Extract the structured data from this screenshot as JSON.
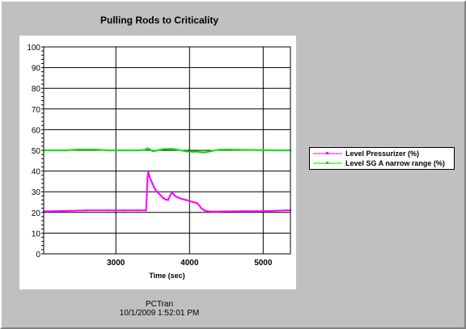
{
  "chart_data": {
    "type": "line",
    "title": "Pulling Rods to Criticality",
    "xlabel": "Time (sec)",
    "ylabel": "",
    "xlim": [
      2020,
      5370
    ],
    "ylim": [
      0,
      100
    ],
    "x_ticks": [
      3000,
      4000,
      5000
    ],
    "y_ticks": [
      0,
      10,
      20,
      30,
      40,
      50,
      60,
      70,
      80,
      90,
      100
    ],
    "grid": true,
    "legend_position": "right",
    "series": [
      {
        "name": "Level Pressurizer (%)",
        "color": "#ff00ff",
        "x": [
          2020,
          2300,
          2600,
          2900,
          3100,
          3300,
          3410,
          3420,
          3430,
          3440,
          3460,
          3490,
          3520,
          3560,
          3600,
          3640,
          3680,
          3710,
          3740,
          3760,
          3780,
          3800,
          3830,
          3860,
          3900,
          3950,
          4000,
          4050,
          4100,
          4130,
          4160,
          4200,
          4250,
          4300,
          4400,
          4500,
          4700,
          4900,
          5100,
          5300,
          5370
        ],
        "y": [
          20.5,
          20.7,
          21,
          21,
          21,
          21,
          21,
          29,
          37,
          39.5,
          37,
          34.5,
          32,
          30,
          28.5,
          27,
          26.2,
          26,
          28.5,
          29.5,
          29,
          28,
          27.5,
          27,
          26.5,
          26,
          25.5,
          25,
          24.5,
          23.5,
          22,
          21,
          20.5,
          20.4,
          20.4,
          20.5,
          20.6,
          20.6,
          20.7,
          21,
          21
        ]
      },
      {
        "name": "Level SG A narrow range (%)",
        "color": "#00e000",
        "x": [
          2020,
          2300,
          2500,
          2700,
          2900,
          3100,
          3300,
          3400,
          3430,
          3470,
          3500,
          3550,
          3600,
          3650,
          3700,
          3750,
          3800,
          3850,
          3900,
          3950,
          4000,
          4050,
          4100,
          4150,
          4200,
          4250,
          4300,
          4400,
          4500,
          4600,
          4800,
          5000,
          5200,
          5370
        ],
        "y": [
          50,
          50,
          50.4,
          50.4,
          50,
          50,
          50,
          50.3,
          51,
          50.3,
          49.6,
          49.8,
          50.3,
          50.6,
          50.6,
          50.8,
          50.5,
          50.2,
          49.9,
          49.5,
          49.4,
          49.3,
          49.4,
          49.1,
          49,
          49.3,
          49.7,
          50.3,
          50.4,
          50.3,
          50.2,
          50.1,
          50,
          50
        ]
      }
    ]
  },
  "footer": {
    "line1": "PCTran",
    "line2": "10/1/2009 1:52:01 PM"
  }
}
